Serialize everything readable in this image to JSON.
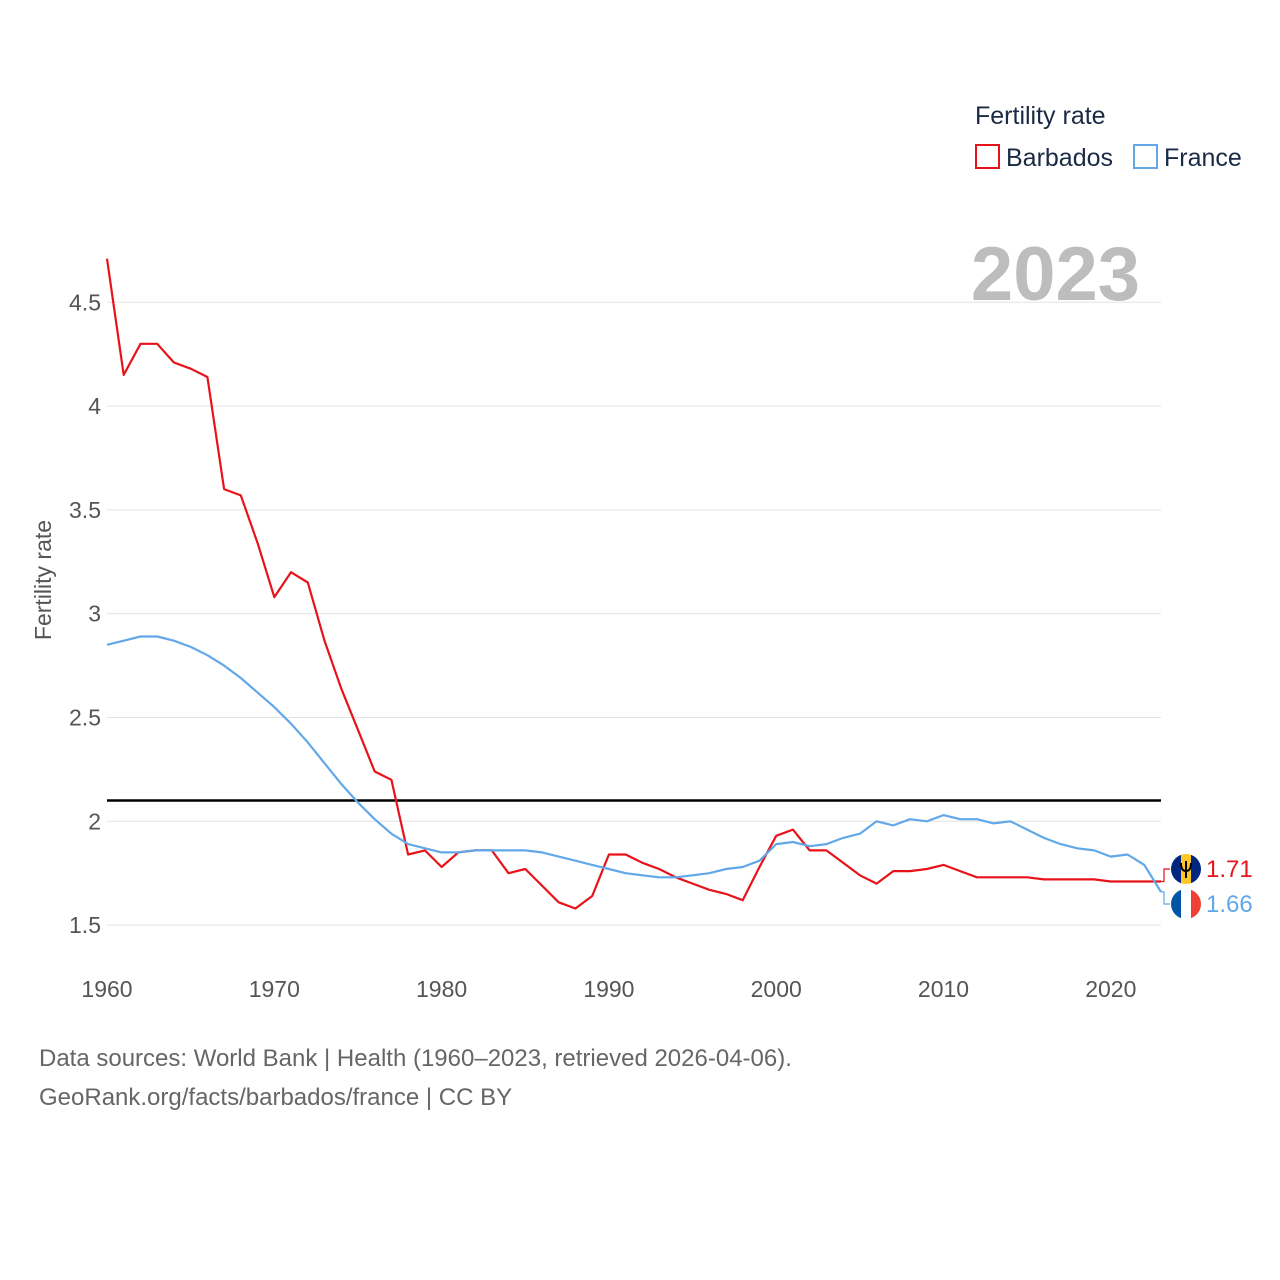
{
  "chart_data": {
    "type": "line",
    "ylabel": "Fertility rate",
    "xlabel": "",
    "xlim": [
      1960,
      2023
    ],
    "ylim": [
      1.38,
      4.8
    ],
    "x_ticks": [
      "1960",
      "1970",
      "1980",
      "1990",
      "2000",
      "2010",
      "2020"
    ],
    "y_ticks": [
      "1.5",
      "2",
      "2.5",
      "3",
      "3.5",
      "4",
      "4.5"
    ],
    "y_tick_values": [
      1.5,
      2,
      2.5,
      3,
      3.5,
      4,
      4.5
    ],
    "x_tick_values": [
      1960,
      1970,
      1980,
      1990,
      2000,
      2010,
      2020
    ],
    "legend_title": "Fertility rate",
    "year_label": "2023",
    "reference_line": {
      "y": 2.1,
      "color": "#000000"
    },
    "x": [
      1960,
      1961,
      1962,
      1963,
      1964,
      1965,
      1966,
      1967,
      1968,
      1969,
      1970,
      1971,
      1972,
      1973,
      1974,
      1975,
      1976,
      1977,
      1978,
      1979,
      1980,
      1981,
      1982,
      1983,
      1984,
      1985,
      1986,
      1987,
      1988,
      1989,
      1990,
      1991,
      1992,
      1993,
      1994,
      1995,
      1996,
      1997,
      1998,
      1999,
      2000,
      2001,
      2002,
      2003,
      2004,
      2005,
      2006,
      2007,
      2008,
      2009,
      2010,
      2011,
      2012,
      2013,
      2014,
      2015,
      2016,
      2017,
      2018,
      2019,
      2020,
      2021,
      2022,
      2023
    ],
    "series": [
      {
        "name": "Barbados",
        "color": "#e8131a",
        "end_label": "1.71",
        "values": [
          4.71,
          4.15,
          4.3,
          4.3,
          4.21,
          4.18,
          4.14,
          3.6,
          3.57,
          3.34,
          3.08,
          3.2,
          3.15,
          2.87,
          2.64,
          2.44,
          2.24,
          2.2,
          1.84,
          1.86,
          1.78,
          1.85,
          1.86,
          1.86,
          1.75,
          1.77,
          1.69,
          1.61,
          1.58,
          1.64,
          1.84,
          1.84,
          1.8,
          1.77,
          1.73,
          1.7,
          1.67,
          1.65,
          1.62,
          1.78,
          1.93,
          1.96,
          1.86,
          1.86,
          1.8,
          1.74,
          1.7,
          1.76,
          1.76,
          1.77,
          1.79,
          1.76,
          1.73,
          1.73,
          1.73,
          1.73,
          1.72,
          1.72,
          1.72,
          1.72,
          1.71,
          1.71,
          1.71,
          1.71
        ]
      },
      {
        "name": "France",
        "color": "#62a8e8",
        "end_label": "1.66",
        "values": [
          2.85,
          2.87,
          2.89,
          2.89,
          2.87,
          2.84,
          2.8,
          2.75,
          2.69,
          2.62,
          2.55,
          2.47,
          2.38,
          2.28,
          2.18,
          2.09,
          2.01,
          1.94,
          1.89,
          1.87,
          1.85,
          1.85,
          1.86,
          1.86,
          1.86,
          1.86,
          1.85,
          1.83,
          1.81,
          1.79,
          1.77,
          1.75,
          1.74,
          1.73,
          1.73,
          1.74,
          1.75,
          1.77,
          1.78,
          1.81,
          1.89,
          1.9,
          1.88,
          1.89,
          1.92,
          1.94,
          2.0,
          1.98,
          2.01,
          2.0,
          2.03,
          2.01,
          2.01,
          1.99,
          2.0,
          1.96,
          1.92,
          1.89,
          1.87,
          1.86,
          1.83,
          1.84,
          1.79,
          1.66
        ]
      }
    ]
  },
  "footer": {
    "source_line": "Data sources: World Bank | Health (1960–2023, retrieved 2026-04-06).",
    "url_line": "GeoRank.org/facts/barbados/france | CC BY"
  }
}
